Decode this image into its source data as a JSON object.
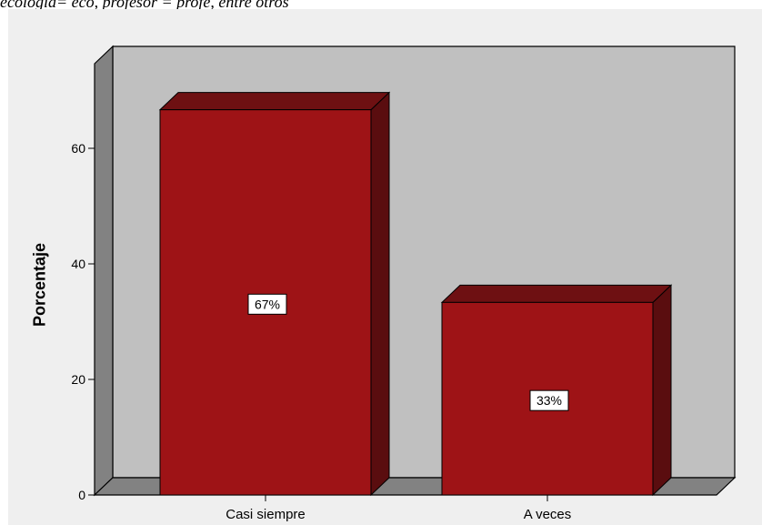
{
  "caption": "ecologia= eco, profesor = profe, entre otros",
  "colors": {
    "plot_back": "#c0c0c0",
    "plot_left_wall": "#828282",
    "plot_floor": "#828282",
    "bar_front": "#9e1316",
    "bar_top": "#6e1012",
    "bar_side": "#5a0d0f",
    "frame_bg": "#efefef"
  },
  "chart_data": {
    "type": "bar",
    "categories": [
      "Casi siempre",
      "A veces"
    ],
    "values": [
      66.67,
      33.33
    ],
    "data_labels": [
      "67%",
      "33%"
    ],
    "title": "",
    "xlabel": "",
    "ylabel": "Porcentaje",
    "ylim": [
      0,
      72
    ],
    "yticks": [
      0,
      20,
      40,
      60
    ],
    "ytick_labels": [
      "0",
      "20",
      "40",
      "60"
    ],
    "grid": false,
    "legend": "none",
    "style": "3d"
  }
}
